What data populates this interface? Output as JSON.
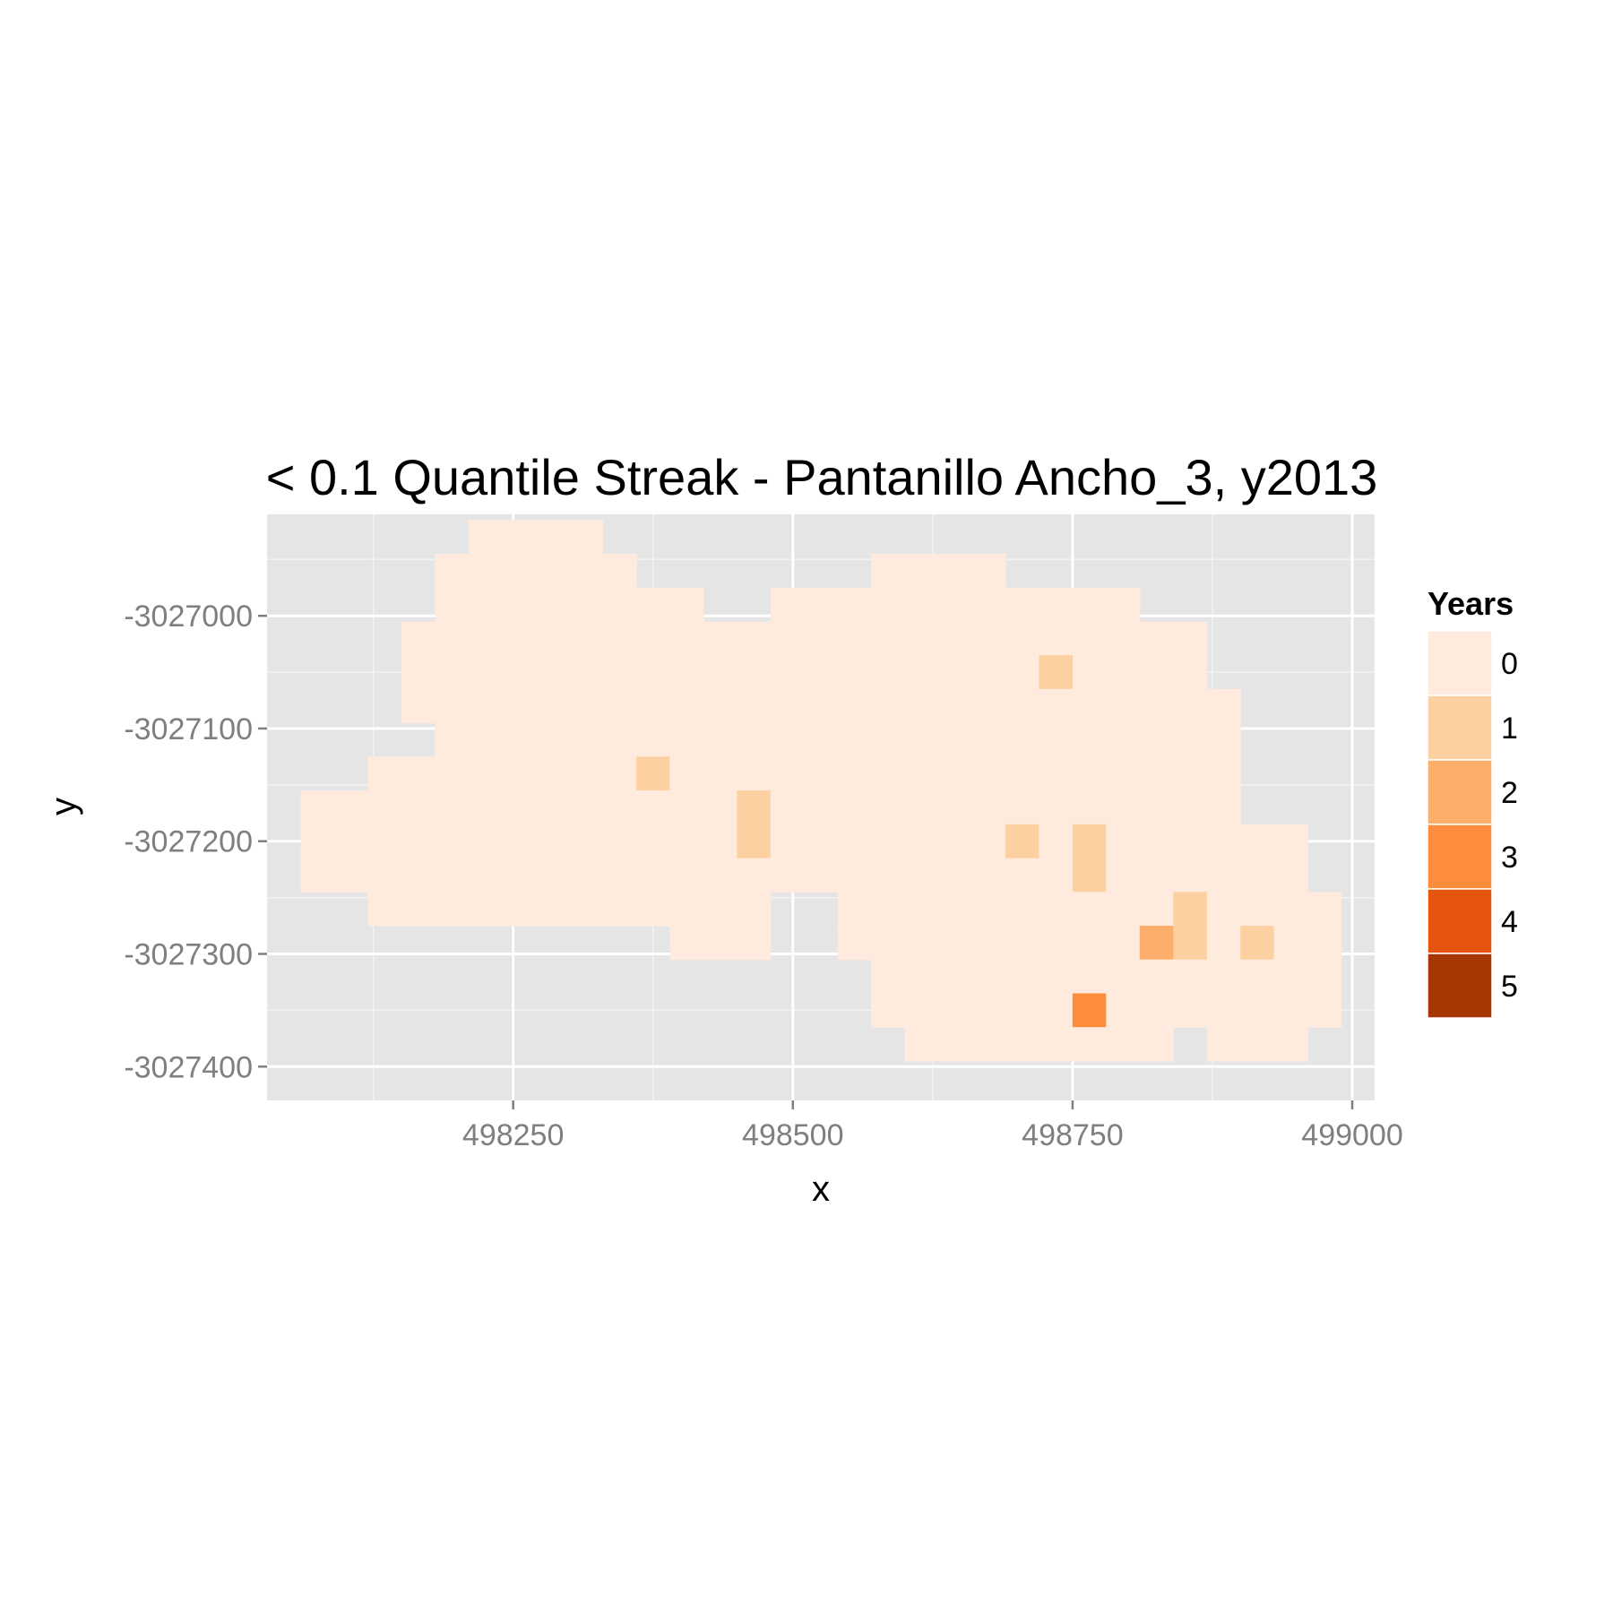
{
  "chart_data": {
    "type": "heatmap",
    "title": "< 0.1 Quantile Streak - Pantanillo Ancho_3, y2013",
    "xlabel": "x",
    "ylabel": "y",
    "xlim": [
      498030,
      499020
    ],
    "ylim": [
      -3027430,
      -3026910
    ],
    "x_ticks": [
      498250,
      498500,
      498750,
      499000
    ],
    "x_tick_labels": [
      "498250",
      "498500",
      "498750",
      "499000"
    ],
    "y_ticks": [
      -3027000,
      -3027100,
      -3027200,
      -3027300,
      -3027400
    ],
    "y_tick_labels": [
      "-3027000",
      "-3027100",
      "-3027200",
      "-3027300",
      "-3027400"
    ],
    "grid": true,
    "cell_size": 30,
    "legend": {
      "title": "Years",
      "position": "right",
      "levels": [
        "0",
        "1",
        "2",
        "3",
        "4",
        "5"
      ],
      "colors": [
        "#feebde",
        "#fdd0a2",
        "#fdae6b",
        "#fd8d3c",
        "#e6550d",
        "#a63603"
      ]
    },
    "rows": [
      {
        "y": -3026930,
        "cells": [
          [
            498225,
            498315,
            0
          ]
        ]
      },
      {
        "y": -3026960,
        "cells": [
          [
            498195,
            498345,
            0
          ],
          [
            498585,
            498675,
            0
          ]
        ]
      },
      {
        "y": -3026990,
        "cells": [
          [
            498195,
            498405,
            0
          ],
          [
            498495,
            498795,
            0
          ]
        ]
      },
      {
        "y": -3027020,
        "cells": [
          [
            498165,
            498855,
            0
          ]
        ]
      },
      {
        "y": -3027050,
        "cells": [
          [
            498165,
            498705,
            0
          ],
          [
            498735,
            498735,
            1
          ],
          [
            498765,
            498855,
            0
          ]
        ]
      },
      {
        "y": -3027080,
        "cells": [
          [
            498165,
            498885,
            0
          ]
        ]
      },
      {
        "y": -3027110,
        "cells": [
          [
            498195,
            498885,
            0
          ]
        ]
      },
      {
        "y": -3027140,
        "cells": [
          [
            498135,
            498345,
            0
          ],
          [
            498375,
            498375,
            1
          ],
          [
            498405,
            498885,
            0
          ]
        ]
      },
      {
        "y": -3027170,
        "cells": [
          [
            498075,
            498435,
            0
          ],
          [
            498465,
            498465,
            1
          ],
          [
            498495,
            498885,
            0
          ]
        ]
      },
      {
        "y": -3027200,
        "cells": [
          [
            498075,
            498435,
            0
          ],
          [
            498465,
            498465,
            1
          ],
          [
            498495,
            498675,
            0
          ],
          [
            498705,
            498705,
            1
          ],
          [
            498735,
            498735,
            0
          ],
          [
            498765,
            498765,
            1
          ],
          [
            498795,
            498945,
            0
          ]
        ]
      },
      {
        "y": -3027230,
        "cells": [
          [
            498075,
            498465,
            0
          ],
          [
            498495,
            498735,
            0
          ],
          [
            498765,
            498765,
            1
          ],
          [
            498795,
            498945,
            0
          ]
        ]
      },
      {
        "y": -3027260,
        "cells": [
          [
            498135,
            498465,
            0
          ],
          [
            498555,
            498825,
            0
          ],
          [
            498855,
            498855,
            1
          ],
          [
            498885,
            498975,
            0
          ]
        ]
      },
      {
        "y": -3027290,
        "cells": [
          [
            498405,
            498465,
            0
          ],
          [
            498555,
            498795,
            0
          ],
          [
            498825,
            498825,
            2
          ],
          [
            498855,
            498855,
            1
          ],
          [
            498885,
            498885,
            0
          ],
          [
            498915,
            498915,
            1
          ],
          [
            498945,
            498975,
            0
          ]
        ]
      },
      {
        "y": -3027320,
        "cells": [
          [
            498585,
            498975,
            0
          ]
        ]
      },
      {
        "y": -3027350,
        "cells": [
          [
            498585,
            498735,
            0
          ],
          [
            498765,
            498765,
            3
          ],
          [
            498795,
            498975,
            0
          ]
        ]
      },
      {
        "y": -3027380,
        "cells": [
          [
            498615,
            498825,
            0
          ],
          [
            498885,
            498945,
            0
          ]
        ]
      }
    ]
  }
}
